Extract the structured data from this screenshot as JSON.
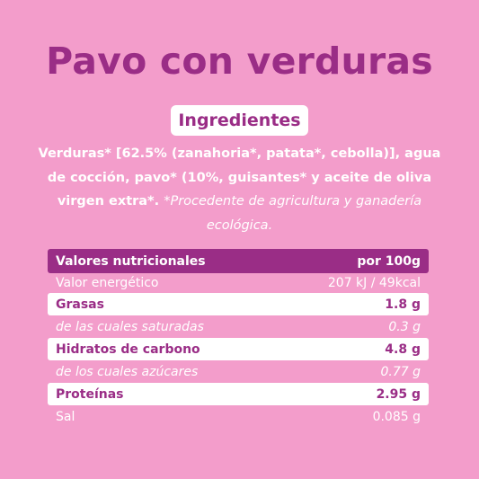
{
  "title": "Pavo con verduras",
  "ingredients": {
    "label": "Ingredientes",
    "text_main": "Verduras* [62.5% (zanahoria*, patata*, cebolla)], agua de cocción, pavo* (10%, guisantes* y aceite de oliva virgen extra*.",
    "text_note": "*Procedente de agricultura y ganadería ecológica."
  },
  "nutrition": {
    "header": {
      "label": "Valores nutricionales",
      "value": "por 100g"
    },
    "rows": [
      {
        "label": "Valor energético",
        "value": "207 kJ / 49kcal"
      },
      {
        "label": "Grasas",
        "value": "1.8 g"
      },
      {
        "label": "de las cuales saturadas",
        "value": "0.3 g"
      },
      {
        "label": "Hidratos de carbono",
        "value": "4.8 g"
      },
      {
        "label": "de los cuales azúcares",
        "value": "0.77 g"
      },
      {
        "label": "Proteínas",
        "value": "2.95 g"
      },
      {
        "label": "Sal",
        "value": "0.085 g"
      }
    ]
  },
  "colors": {
    "background": "#f39dcb",
    "accent": "#9a2d86",
    "white": "#ffffff"
  }
}
